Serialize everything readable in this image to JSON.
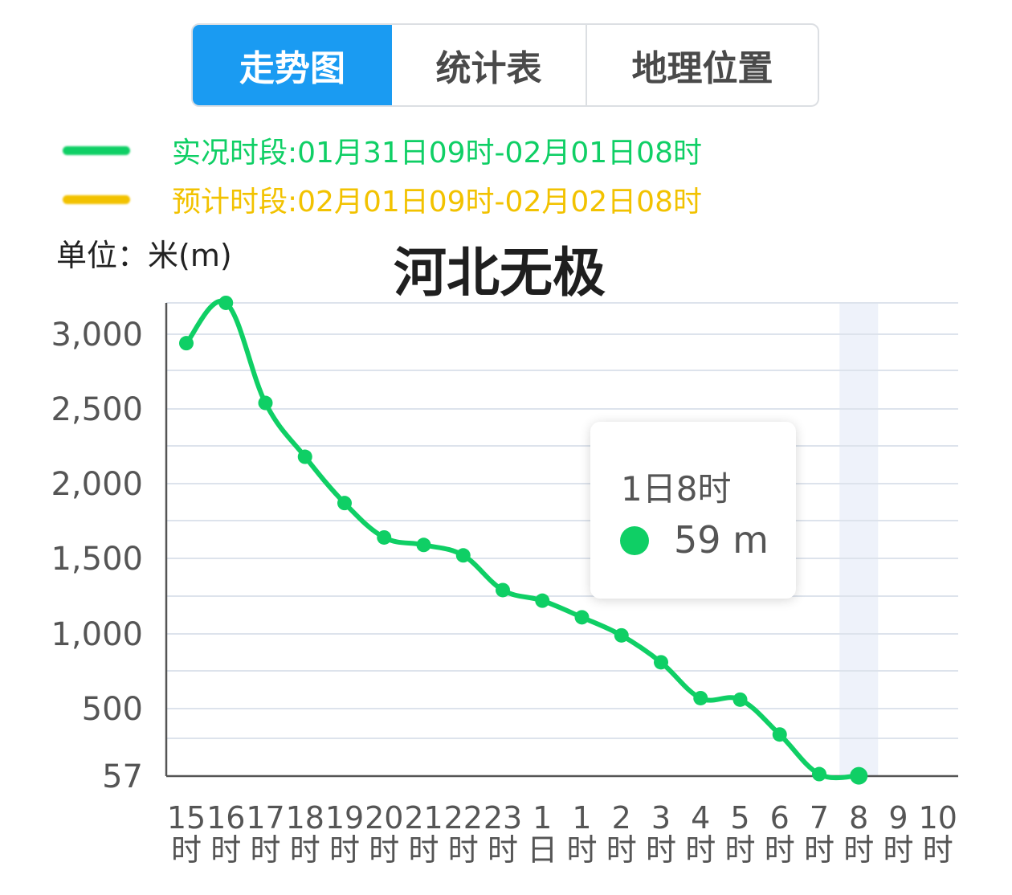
{
  "tabs": [
    {
      "label": "走势图",
      "active": true
    },
    {
      "label": "统计表",
      "active": false
    },
    {
      "label": "地理位置",
      "active": false
    }
  ],
  "legend": {
    "observed": {
      "text": "实况时段:01月31日09时-02月01日08时",
      "color": "#0fcf65"
    },
    "forecast": {
      "text": "预计时段:02月01日09时-02月02日08时",
      "color": "#f2c200"
    }
  },
  "unit_label": "单位：米(m)",
  "title": "河北无极",
  "tooltip": {
    "title": "1日8时",
    "value": "59 m",
    "color": "#0fcf65"
  },
  "colors": {
    "line": "#0fcf65",
    "grid": "#dde3ec",
    "axis": "#555555",
    "highlight_band": "#eef2fa",
    "tab_active": "#1a9bf2"
  },
  "chart_data": {
    "type": "line",
    "title": "河北无极",
    "ylabel": "单位：米(m)",
    "y_ticks": [
      "3,000",
      "2,500",
      "2,000",
      "1,500",
      "1,000",
      "500",
      "57"
    ],
    "y_tick_values": [
      3000,
      2500,
      2000,
      1500,
      1000,
      500,
      57
    ],
    "x_ticks": [
      [
        "15",
        "时"
      ],
      [
        "16",
        "时"
      ],
      [
        "17",
        "时"
      ],
      [
        "18",
        "时"
      ],
      [
        "19",
        "时"
      ],
      [
        "20",
        "时"
      ],
      [
        "21",
        "时"
      ],
      [
        "22",
        "时"
      ],
      [
        "23",
        "时"
      ],
      [
        "1",
        "日"
      ],
      [
        "1",
        "时"
      ],
      [
        "2",
        "时"
      ],
      [
        "3",
        "时"
      ],
      [
        "4",
        "时"
      ],
      [
        "5",
        "时"
      ],
      [
        "6",
        "时"
      ],
      [
        "7",
        "时"
      ],
      [
        "8",
        "时"
      ],
      [
        "9",
        "时"
      ],
      [
        "10",
        "时"
      ]
    ],
    "series": [
      {
        "name": "实况时段:01月31日09时-02月01日08时",
        "values": [
          2940,
          3210,
          2540,
          2180,
          1870,
          1640,
          1590,
          1520,
          1290,
          1220,
          1110,
          990,
          810,
          570,
          560,
          330,
          70,
          59,
          null,
          null
        ]
      }
    ],
    "highlight_index": 17,
    "grid": true
  }
}
